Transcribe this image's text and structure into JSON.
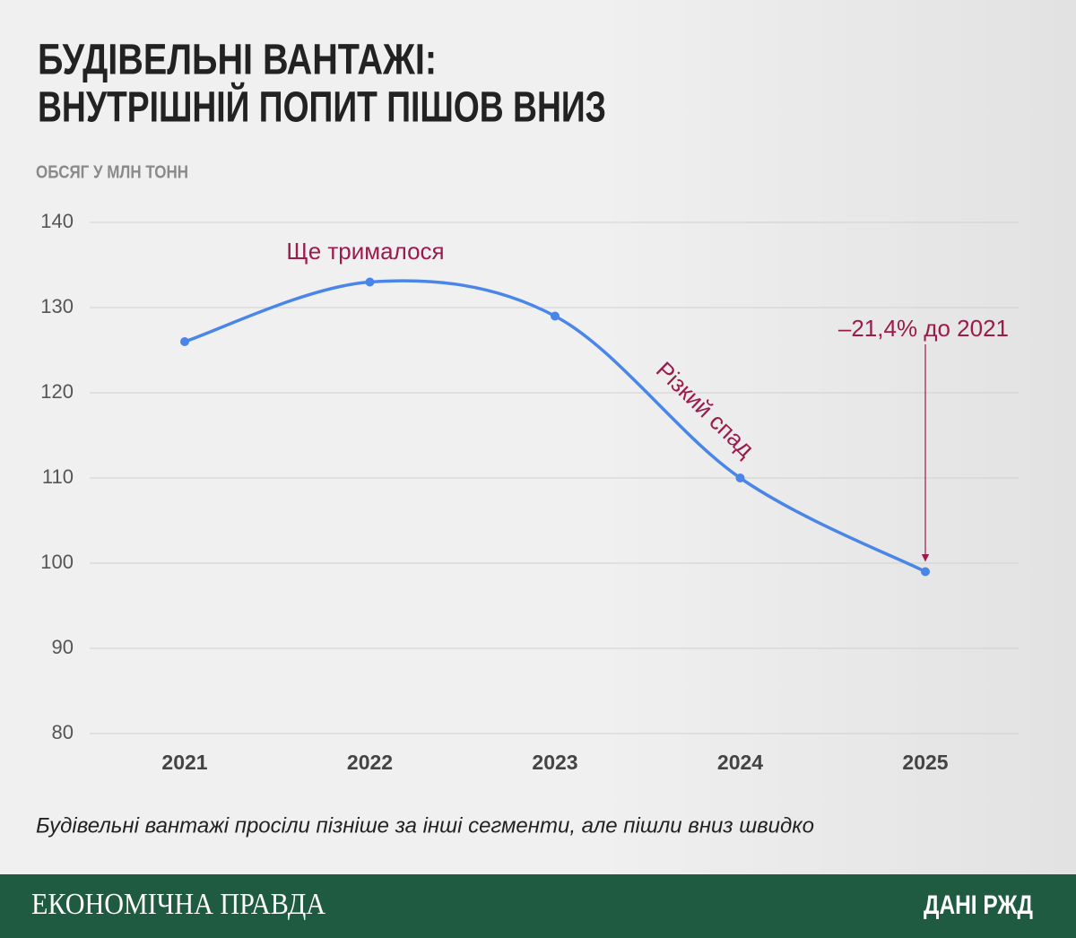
{
  "chart_data": {
    "type": "line",
    "title": [
      "БУДІВЕЛЬНІ ВАНТАЖІ:",
      "ВНУТРІШНІЙ ПОПИТ ПІШОВ ВНИЗ"
    ],
    "subtitle": "ОБСЯГ У МЛН ТОНН",
    "categories": [
      "2021",
      "2022",
      "2023",
      "2024",
      "2025"
    ],
    "series": [
      {
        "name": "Будівельні вантажі",
        "color": "#4a86e8",
        "values": [
          126,
          133,
          129,
          110,
          99
        ]
      }
    ],
    "ylim": [
      80,
      140
    ],
    "yticks": [
      80,
      90,
      100,
      110,
      120,
      130,
      140
    ],
    "grid": true,
    "annotations": [
      "Ще трималося",
      "Різкий спад",
      "–21,4% до 2021"
    ],
    "annotation_color": "#9b1b4b",
    "caption": "Будівельні вантажі просіли пізніше за інші сегменти, але пішли вниз швидко"
  },
  "footer": {
    "brand": "ЕКОНОМІЧНА ПРАВДА",
    "source": "ДАНІ РЖД"
  }
}
